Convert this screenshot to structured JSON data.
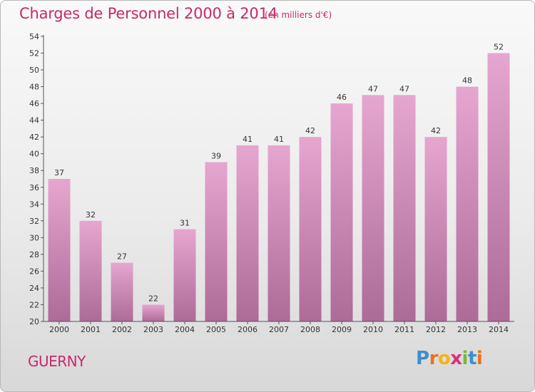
{
  "title": "Charges de Personnel 2000 à 2014",
  "subtitle": "(en milliers d'€)",
  "commune": "GUERNY",
  "logo": {
    "letters": [
      "P",
      "r",
      "o",
      "x",
      "i",
      "t",
      "i"
    ],
    "colors": [
      "#3a8fd0",
      "#e8731d",
      "#f2b417",
      "#d82f7a",
      "#7cb53c",
      "#3a8fd0",
      "#e8731d"
    ]
  },
  "chart_data": {
    "type": "bar",
    "categories": [
      "2000",
      "2001",
      "2002",
      "2003",
      "2004",
      "2005",
      "2006",
      "2007",
      "2008",
      "2009",
      "2010",
      "2011",
      "2012",
      "2013",
      "2014"
    ],
    "values": [
      37,
      32,
      27,
      22,
      31,
      39,
      41,
      41,
      42,
      46,
      47,
      47,
      42,
      48,
      52
    ],
    "ylim": [
      20,
      54
    ],
    "yticks": [
      20,
      22,
      24,
      26,
      28,
      30,
      32,
      34,
      36,
      38,
      40,
      42,
      44,
      46,
      48,
      50,
      52,
      54
    ],
    "grid": false,
    "colors": {
      "bar_top": "#e6a6d0",
      "bar_bottom": "#ad6b97",
      "axis": "#555555",
      "label": "#333333"
    }
  }
}
